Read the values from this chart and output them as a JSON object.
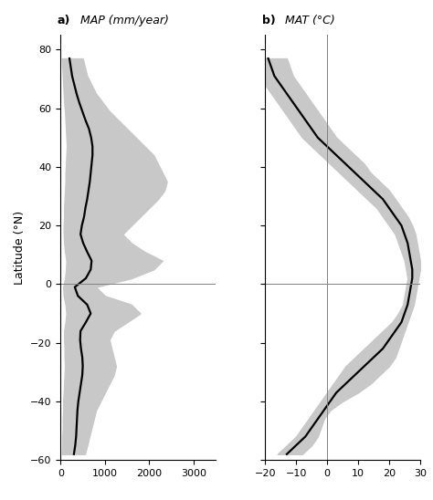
{
  "ylabel": "Latitude (°N)",
  "xlim_a": [
    0,
    3500
  ],
  "xlim_b": [
    -20,
    30
  ],
  "ylim": [
    -60,
    85
  ],
  "xticks_a": [
    0,
    1000,
    2000,
    3000
  ],
  "xticks_b": [
    -20,
    -10,
    0,
    10,
    20,
    30
  ],
  "yticks": [
    -60,
    -40,
    -20,
    0,
    20,
    40,
    60,
    80
  ],
  "fill_color": "#c8c8c8",
  "line_color": "#000000",
  "line_width": 1.6,
  "latitudes": [
    77,
    74,
    71,
    68,
    65,
    62,
    59,
    56,
    53,
    50,
    47,
    44,
    41,
    38,
    35,
    32,
    29,
    26,
    23,
    20,
    17,
    14,
    11,
    8,
    5,
    2,
    -1,
    -4,
    -7,
    -10,
    -13,
    -16,
    -19,
    -22,
    -25,
    -28,
    -31,
    -34,
    -37,
    -40,
    -43,
    -46,
    -49,
    -52,
    -55,
    -58
  ],
  "map_mean": [
    200,
    230,
    260,
    310,
    360,
    420,
    490,
    560,
    640,
    690,
    720,
    720,
    700,
    680,
    660,
    630,
    600,
    560,
    530,
    480,
    450,
    510,
    600,
    700,
    680,
    570,
    320,
    390,
    600,
    680,
    570,
    450,
    440,
    460,
    490,
    500,
    490,
    460,
    430,
    400,
    380,
    370,
    360,
    350,
    330,
    300
  ],
  "map_low": [
    30,
    40,
    50,
    60,
    70,
    80,
    100,
    110,
    120,
    130,
    140,
    130,
    120,
    110,
    110,
    100,
    90,
    80,
    80,
    70,
    70,
    80,
    100,
    130,
    120,
    100,
    60,
    70,
    110,
    130,
    110,
    80,
    80,
    90,
    90,
    100,
    90,
    80,
    70,
    60,
    60,
    50,
    50,
    40,
    40,
    30
  ],
  "map_high": [
    500,
    550,
    600,
    700,
    800,
    950,
    1100,
    1300,
    1500,
    1700,
    1900,
    2100,
    2200,
    2300,
    2400,
    2350,
    2200,
    2000,
    1800,
    1600,
    1400,
    1600,
    1900,
    2300,
    2100,
    1600,
    800,
    1000,
    1600,
    1800,
    1500,
    1200,
    1100,
    1150,
    1200,
    1250,
    1200,
    1100,
    1000,
    900,
    800,
    750,
    700,
    650,
    600,
    550
  ],
  "mat_mean": [
    -19,
    -18,
    -17,
    -15,
    -13,
    -11,
    -9,
    -7,
    -5,
    -3,
    0,
    3,
    6,
    9,
    12,
    15,
    18,
    20,
    22,
    24,
    25,
    26,
    26.5,
    27,
    27.5,
    27.5,
    27,
    26.5,
    26,
    25,
    24,
    22,
    20,
    18,
    15,
    12,
    9,
    6,
    3,
    1,
    -1,
    -3,
    -5,
    -7,
    -10,
    -13
  ],
  "mat_low": [
    -23,
    -22,
    -21,
    -20,
    -18,
    -16,
    -14,
    -12,
    -10,
    -8,
    -5,
    -2,
    1,
    4,
    7,
    10,
    13,
    16,
    18,
    20,
    22,
    23,
    24,
    25,
    25.5,
    26,
    25.5,
    25,
    24.5,
    23,
    21,
    18,
    15,
    12,
    9,
    6,
    4,
    2,
    0,
    -2,
    -4,
    -6,
    -8,
    -10,
    -13,
    -16
  ],
  "mat_high": [
    -13,
    -12,
    -11,
    -9,
    -7,
    -5,
    -3,
    -1,
    1,
    3,
    6,
    9,
    12,
    14,
    17,
    20,
    22,
    24,
    26,
    27.5,
    28.5,
    29,
    29.5,
    30,
    30,
    29.5,
    29,
    28.5,
    28,
    27,
    26,
    25,
    24,
    23,
    22,
    20,
    17,
    14,
    10,
    5,
    1,
    -1,
    -2,
    -3,
    -5,
    -8
  ]
}
